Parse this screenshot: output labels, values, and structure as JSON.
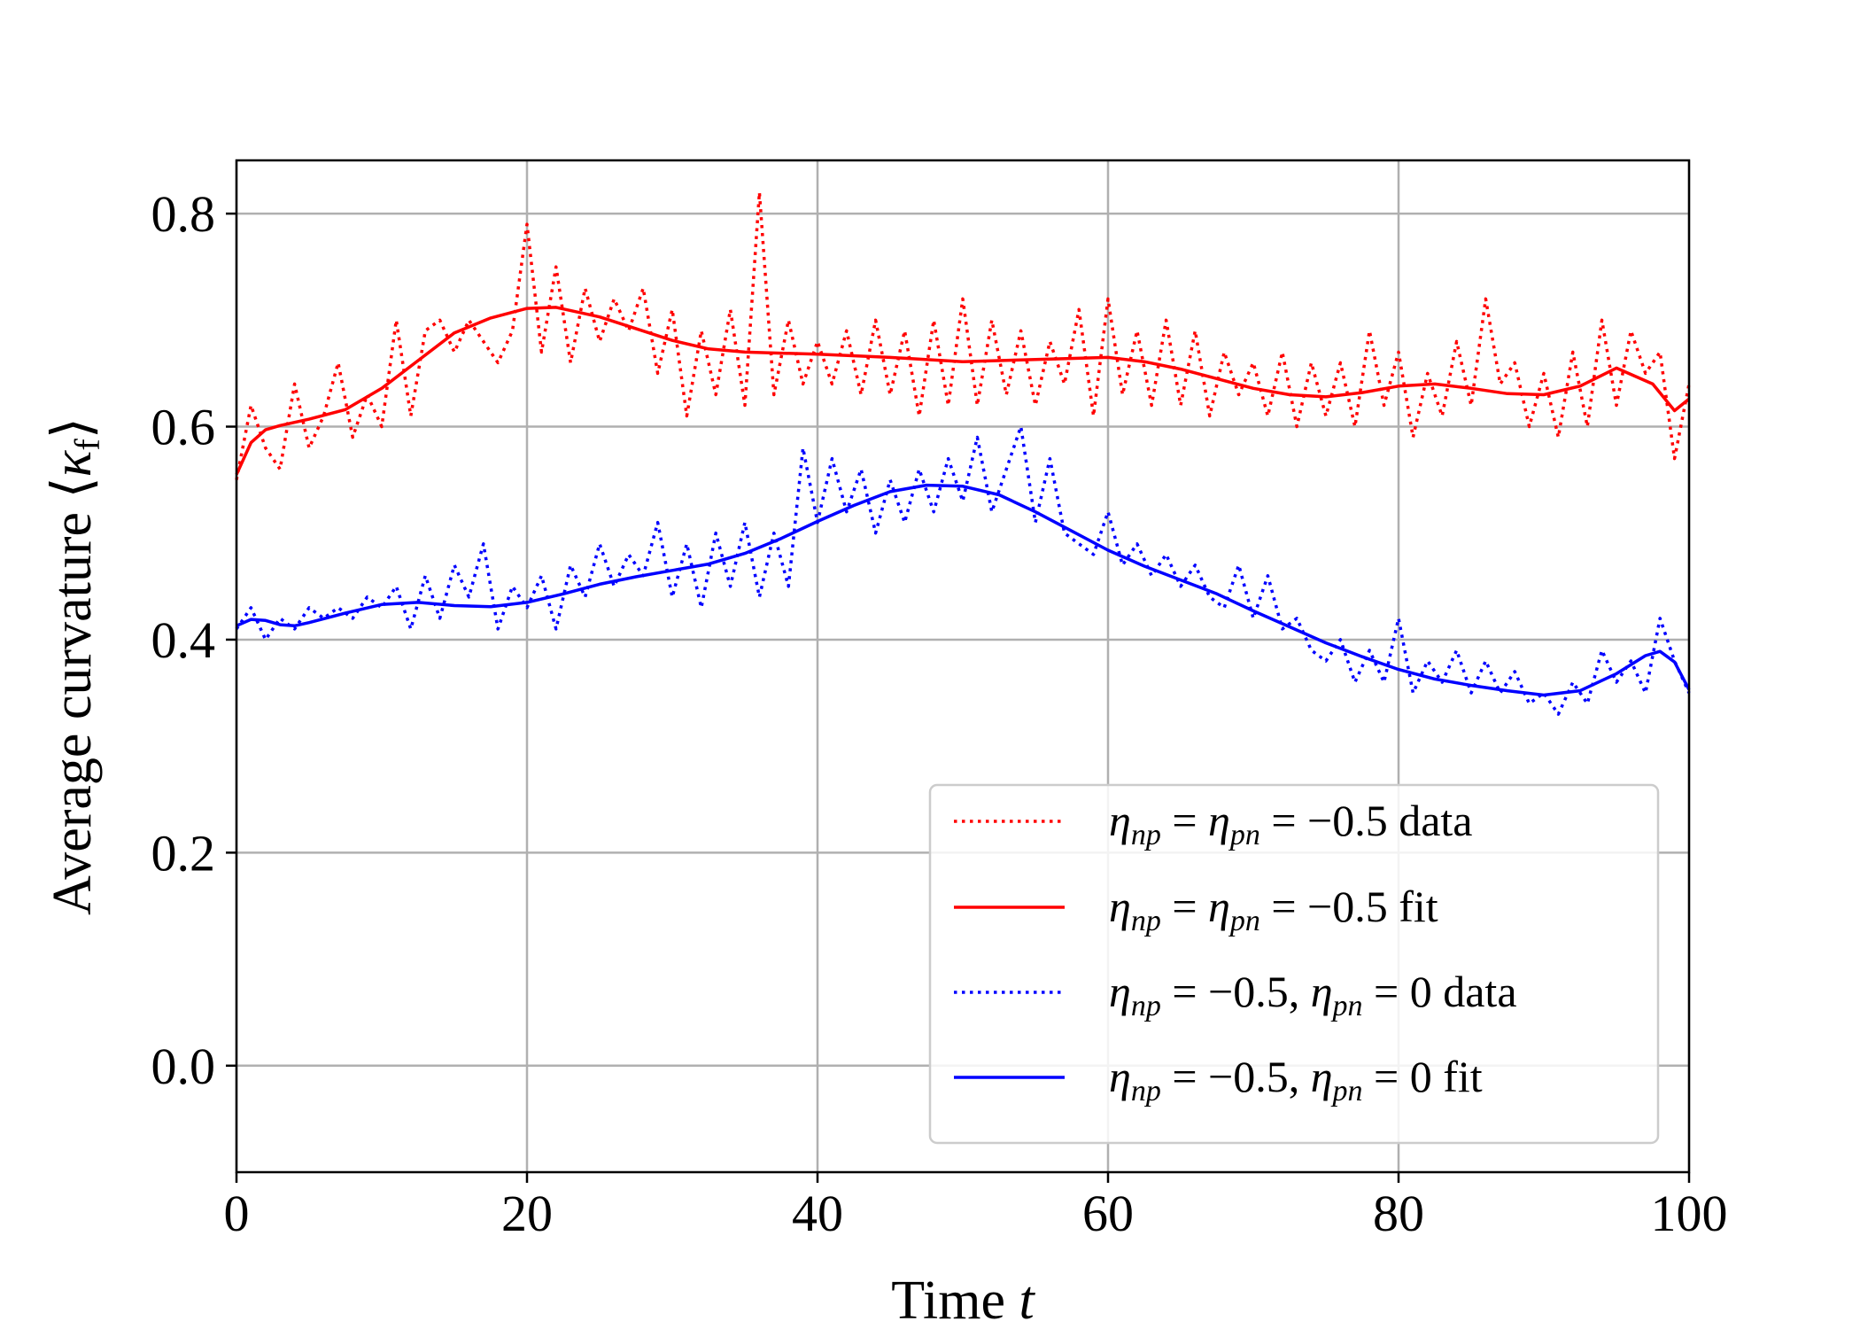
{
  "chart_data": {
    "type": "line",
    "title": "",
    "xlabel": "Time t",
    "ylabel": "Average curvature ⟨κ_f⟩",
    "xlim": [
      0,
      100
    ],
    "ylim": [
      -0.1,
      0.85
    ],
    "grid": true,
    "legend_position": "lower-right",
    "x_ticks": [
      0,
      20,
      40,
      60,
      80,
      100
    ],
    "x_tick_labels": [
      "0",
      "20",
      "40",
      "60",
      "80",
      "100"
    ],
    "y_ticks": [
      0.0,
      0.2,
      0.4,
      0.6,
      0.8
    ],
    "y_tick_labels": [
      "0.0",
      "0.2",
      "0.4",
      "0.6",
      "0.8"
    ],
    "series": [
      {
        "name": "η_np = η_pn = −0.5 data",
        "color": "#ff0000",
        "style": "dotted",
        "x": [
          0,
          1,
          2,
          3,
          4,
          5,
          6,
          7,
          8,
          9,
          10,
          11,
          12,
          13,
          14,
          15,
          16,
          17,
          18,
          19,
          20,
          21,
          22,
          23,
          24,
          25,
          26,
          27,
          28,
          29,
          30,
          31,
          32,
          33,
          34,
          35,
          36,
          37,
          38,
          39,
          40,
          41,
          42,
          43,
          44,
          45,
          46,
          47,
          48,
          49,
          50,
          51,
          52,
          53,
          54,
          55,
          56,
          57,
          58,
          59,
          60,
          61,
          62,
          63,
          64,
          65,
          66,
          67,
          68,
          69,
          70,
          71,
          72,
          73,
          74,
          75,
          76,
          77,
          78,
          79,
          80,
          81,
          82,
          83,
          84,
          85,
          86,
          87,
          88,
          89,
          90,
          91,
          92,
          93,
          94,
          95,
          96,
          97,
          98,
          99,
          100
        ],
        "values": [
          0.55,
          0.62,
          0.58,
          0.56,
          0.64,
          0.58,
          0.61,
          0.66,
          0.59,
          0.63,
          0.6,
          0.7,
          0.61,
          0.69,
          0.7,
          0.67,
          0.7,
          0.68,
          0.66,
          0.69,
          0.79,
          0.67,
          0.75,
          0.66,
          0.73,
          0.68,
          0.72,
          0.69,
          0.73,
          0.65,
          0.71,
          0.61,
          0.69,
          0.63,
          0.71,
          0.62,
          0.82,
          0.63,
          0.7,
          0.64,
          0.68,
          0.64,
          0.69,
          0.63,
          0.7,
          0.63,
          0.69,
          0.61,
          0.7,
          0.62,
          0.72,
          0.62,
          0.7,
          0.63,
          0.69,
          0.62,
          0.68,
          0.64,
          0.71,
          0.61,
          0.72,
          0.63,
          0.69,
          0.62,
          0.7,
          0.62,
          0.69,
          0.61,
          0.67,
          0.63,
          0.66,
          0.61,
          0.67,
          0.6,
          0.66,
          0.61,
          0.66,
          0.6,
          0.69,
          0.62,
          0.67,
          0.59,
          0.65,
          0.61,
          0.68,
          0.62,
          0.72,
          0.64,
          0.66,
          0.6,
          0.65,
          0.59,
          0.67,
          0.6,
          0.7,
          0.62,
          0.69,
          0.65,
          0.67,
          0.57,
          0.64
        ]
      },
      {
        "name": "η_np = η_pn = −0.5 fit",
        "color": "#ff0000",
        "style": "solid",
        "x": [
          0,
          1,
          2,
          3,
          4,
          5,
          7.5,
          10,
          12.5,
          15,
          17.5,
          20,
          22,
          25,
          27.5,
          30,
          32.5,
          35,
          40,
          45,
          50,
          55,
          60,
          62.5,
          65,
          67.5,
          70,
          72.5,
          75,
          77.5,
          80,
          82.5,
          85,
          87.5,
          90,
          92.5,
          95,
          97.5,
          99,
          100
        ],
        "values": [
          0.555,
          0.585,
          0.597,
          0.601,
          0.604,
          0.607,
          0.616,
          0.636,
          0.662,
          0.688,
          0.702,
          0.711,
          0.712,
          0.703,
          0.692,
          0.681,
          0.673,
          0.67,
          0.668,
          0.665,
          0.661,
          0.663,
          0.665,
          0.661,
          0.654,
          0.645,
          0.636,
          0.63,
          0.628,
          0.632,
          0.638,
          0.64,
          0.636,
          0.631,
          0.63,
          0.638,
          0.655,
          0.64,
          0.615,
          0.626
        ]
      },
      {
        "name": "η_np = −0.5, η_pn = 0 data",
        "color": "#0000ff",
        "style": "dotted",
        "x": [
          0,
          1,
          2,
          3,
          4,
          5,
          6,
          7,
          8,
          9,
          10,
          11,
          12,
          13,
          14,
          15,
          16,
          17,
          18,
          19,
          20,
          21,
          22,
          23,
          24,
          25,
          26,
          27,
          28,
          29,
          30,
          31,
          32,
          33,
          34,
          35,
          36,
          37,
          38,
          39,
          40,
          41,
          42,
          43,
          44,
          45,
          46,
          47,
          48,
          49,
          50,
          51,
          52,
          53,
          54,
          55,
          56,
          57,
          58,
          59,
          60,
          61,
          62,
          63,
          64,
          65,
          66,
          67,
          68,
          69,
          70,
          71,
          72,
          73,
          74,
          75,
          76,
          77,
          78,
          79,
          80,
          81,
          82,
          83,
          84,
          85,
          86,
          87,
          88,
          89,
          90,
          91,
          92,
          93,
          94,
          95,
          96,
          97,
          98,
          99,
          100
        ],
        "values": [
          0.41,
          0.43,
          0.4,
          0.42,
          0.41,
          0.43,
          0.42,
          0.43,
          0.42,
          0.44,
          0.43,
          0.45,
          0.41,
          0.46,
          0.42,
          0.47,
          0.44,
          0.49,
          0.41,
          0.45,
          0.43,
          0.46,
          0.41,
          0.47,
          0.44,
          0.49,
          0.45,
          0.48,
          0.46,
          0.51,
          0.44,
          0.49,
          0.43,
          0.5,
          0.45,
          0.51,
          0.44,
          0.5,
          0.45,
          0.58,
          0.51,
          0.57,
          0.52,
          0.56,
          0.5,
          0.55,
          0.51,
          0.56,
          0.52,
          0.57,
          0.53,
          0.59,
          0.52,
          0.56,
          0.6,
          0.51,
          0.57,
          0.5,
          0.49,
          0.48,
          0.52,
          0.47,
          0.49,
          0.46,
          0.48,
          0.45,
          0.47,
          0.44,
          0.43,
          0.47,
          0.42,
          0.46,
          0.41,
          0.42,
          0.39,
          0.38,
          0.4,
          0.36,
          0.39,
          0.36,
          0.42,
          0.35,
          0.38,
          0.36,
          0.39,
          0.35,
          0.38,
          0.35,
          0.37,
          0.34,
          0.35,
          0.33,
          0.36,
          0.34,
          0.39,
          0.36,
          0.38,
          0.35,
          0.42,
          0.38,
          0.35
        ]
      },
      {
        "name": "η_np = −0.5, η_pn = 0 fit",
        "color": "#0000ff",
        "style": "solid",
        "x": [
          0,
          1,
          2,
          3,
          4,
          5,
          7.5,
          10,
          12.5,
          15,
          17.5,
          20,
          22.5,
          25,
          27.5,
          30,
          32.5,
          35,
          37.5,
          40,
          42.5,
          45,
          47.5,
          50,
          52.5,
          55,
          57.5,
          60,
          62.5,
          65,
          67.5,
          70,
          72.5,
          75,
          77.5,
          80,
          82.5,
          85,
          87.5,
          90,
          92.5,
          95,
          97,
          98,
          99,
          100
        ],
        "values": [
          0.413,
          0.419,
          0.418,
          0.414,
          0.413,
          0.416,
          0.425,
          0.433,
          0.435,
          0.432,
          0.431,
          0.435,
          0.443,
          0.452,
          0.459,
          0.465,
          0.471,
          0.481,
          0.495,
          0.511,
          0.526,
          0.539,
          0.545,
          0.544,
          0.536,
          0.52,
          0.502,
          0.484,
          0.469,
          0.456,
          0.443,
          0.427,
          0.412,
          0.397,
          0.384,
          0.372,
          0.363,
          0.357,
          0.352,
          0.348,
          0.352,
          0.368,
          0.385,
          0.389,
          0.379,
          0.353
        ]
      }
    ]
  },
  "legend": {
    "items": [
      {
        "eta1": "η",
        "sub1": "np",
        "mid": "=",
        "eta2": "η",
        "sub2": "pn",
        "tail": "= −0.5 data"
      },
      {
        "eta1": "η",
        "sub1": "np",
        "mid": "=",
        "eta2": "η",
        "sub2": "pn",
        "tail": "= −0.5 fit"
      },
      {
        "eta1": "η",
        "sub1": "np",
        "mid": "= −0.5,",
        "eta2": "η",
        "sub2": "pn",
        "tail": "= 0 data"
      },
      {
        "eta1": "η",
        "sub1": "np",
        "mid": "= −0.5,",
        "eta2": "η",
        "sub2": "pn",
        "tail": "= 0 fit"
      }
    ]
  },
  "axis_text": {
    "xlabel_main": "Time ",
    "xlabel_var": "t",
    "ylabel_main": "Average curvature ⟨",
    "ylabel_var": "κ",
    "ylabel_sub": "f",
    "ylabel_close": "⟩"
  }
}
